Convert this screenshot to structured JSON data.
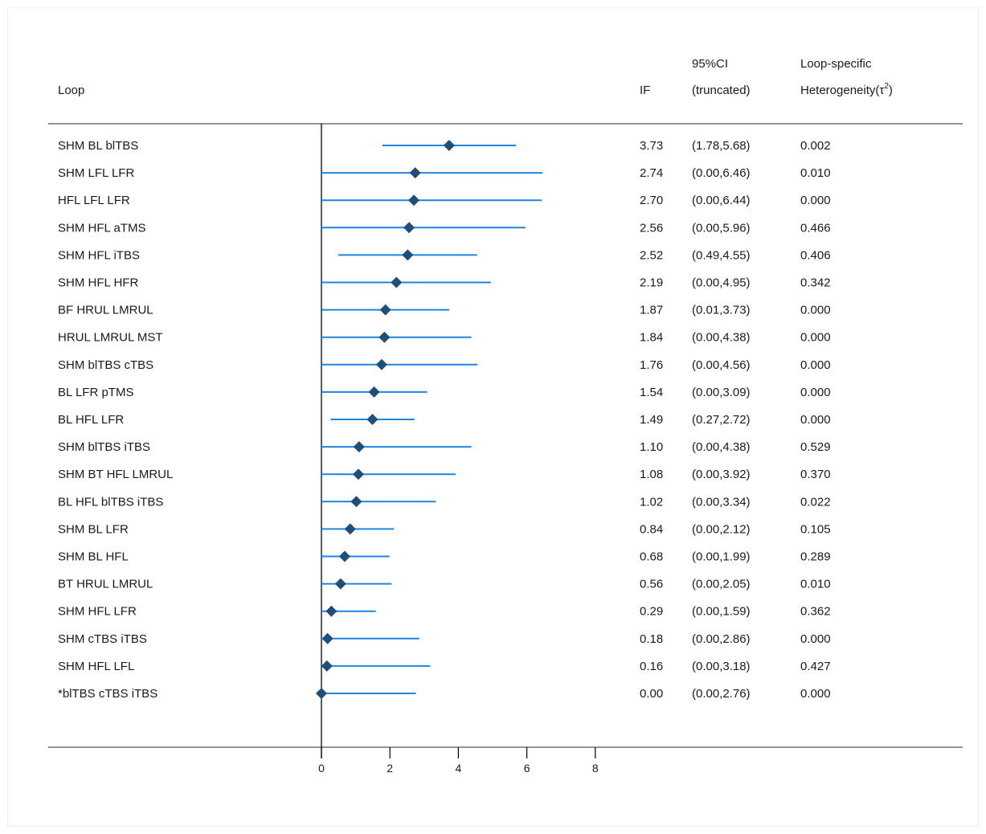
{
  "headers": {
    "loop": "Loop",
    "if": "IF",
    "ci_top": "95%CI",
    "ci_bottom": "(truncated)",
    "het_top": "Loop-specific",
    "het_bottom_prefix": "Heterogeneity(",
    "het_tau": "τ",
    "het_sup": "2",
    "het_bottom_suffix": ")"
  },
  "colors": {
    "ci_line": "#1f86e0",
    "marker": "#1f4e79",
    "axis": "#000000",
    "rule": "#555555"
  },
  "chart_data": {
    "type": "forest",
    "xlabel": "",
    "xlim": [
      0,
      8
    ],
    "xticks": [
      0,
      2,
      4,
      6,
      8
    ],
    "rows": [
      {
        "loop": "SHM BL blTBS",
        "if": 3.73,
        "lo": 1.78,
        "hi": 5.68,
        "if_text": "3.73",
        "ci_text": "(1.78,5.68)",
        "tau2": "0.002"
      },
      {
        "loop": "SHM LFL LFR",
        "if": 2.74,
        "lo": 0.0,
        "hi": 6.46,
        "if_text": "2.74",
        "ci_text": "(0.00,6.46)",
        "tau2": "0.010"
      },
      {
        "loop": "HFL LFL LFR",
        "if": 2.7,
        "lo": 0.0,
        "hi": 6.44,
        "if_text": "2.70",
        "ci_text": "(0.00,6.44)",
        "tau2": "0.000"
      },
      {
        "loop": "SHM HFL aTMS",
        "if": 2.56,
        "lo": 0.0,
        "hi": 5.96,
        "if_text": "2.56",
        "ci_text": "(0.00,5.96)",
        "tau2": "0.466"
      },
      {
        "loop": "SHM HFL iTBS",
        "if": 2.52,
        "lo": 0.49,
        "hi": 4.55,
        "if_text": "2.52",
        "ci_text": "(0.49,4.55)",
        "tau2": "0.406"
      },
      {
        "loop": "SHM HFL HFR",
        "if": 2.19,
        "lo": 0.0,
        "hi": 4.95,
        "if_text": "2.19",
        "ci_text": "(0.00,4.95)",
        "tau2": "0.342"
      },
      {
        "loop": "BF HRUL LMRUL",
        "if": 1.87,
        "lo": 0.01,
        "hi": 3.73,
        "if_text": "1.87",
        "ci_text": "(0.01,3.73)",
        "tau2": "0.000"
      },
      {
        "loop": "HRUL LMRUL MST",
        "if": 1.84,
        "lo": 0.0,
        "hi": 4.38,
        "if_text": "1.84",
        "ci_text": "(0.00,4.38)",
        "tau2": "0.000"
      },
      {
        "loop": "SHM blTBS cTBS",
        "if": 1.76,
        "lo": 0.0,
        "hi": 4.56,
        "if_text": "1.76",
        "ci_text": "(0.00,4.56)",
        "tau2": "0.000"
      },
      {
        "loop": "BL LFR pTMS",
        "if": 1.54,
        "lo": 0.0,
        "hi": 3.09,
        "if_text": "1.54",
        "ci_text": "(0.00,3.09)",
        "tau2": "0.000"
      },
      {
        "loop": "BL HFL LFR",
        "if": 1.49,
        "lo": 0.27,
        "hi": 2.72,
        "if_text": "1.49",
        "ci_text": "(0.27,2.72)",
        "tau2": "0.000"
      },
      {
        "loop": "SHM blTBS iTBS",
        "if": 1.1,
        "lo": 0.0,
        "hi": 4.38,
        "if_text": "1.10",
        "ci_text": "(0.00,4.38)",
        "tau2": "0.529"
      },
      {
        "loop": "SHM BT HFL LMRUL",
        "if": 1.08,
        "lo": 0.0,
        "hi": 3.92,
        "if_text": "1.08",
        "ci_text": "(0.00,3.92)",
        "tau2": "0.370"
      },
      {
        "loop": "BL HFL blTBS iTBS",
        "if": 1.02,
        "lo": 0.0,
        "hi": 3.34,
        "if_text": "1.02",
        "ci_text": "(0.00,3.34)",
        "tau2": "0.022"
      },
      {
        "loop": "SHM BL LFR",
        "if": 0.84,
        "lo": 0.0,
        "hi": 2.12,
        "if_text": "0.84",
        "ci_text": "(0.00,2.12)",
        "tau2": "0.105"
      },
      {
        "loop": "SHM BL HFL",
        "if": 0.68,
        "lo": 0.0,
        "hi": 1.99,
        "if_text": "0.68",
        "ci_text": "(0.00,1.99)",
        "tau2": "0.289"
      },
      {
        "loop": "BT HRUL LMRUL",
        "if": 0.56,
        "lo": 0.0,
        "hi": 2.05,
        "if_text": "0.56",
        "ci_text": "(0.00,2.05)",
        "tau2": "0.010"
      },
      {
        "loop": "SHM HFL LFR",
        "if": 0.29,
        "lo": 0.0,
        "hi": 1.59,
        "if_text": "0.29",
        "ci_text": "(0.00,1.59)",
        "tau2": "0.362"
      },
      {
        "loop": "SHM cTBS iTBS",
        "if": 0.18,
        "lo": 0.0,
        "hi": 2.86,
        "if_text": "0.18",
        "ci_text": "(0.00,2.86)",
        "tau2": "0.000"
      },
      {
        "loop": "SHM HFL LFL",
        "if": 0.16,
        "lo": 0.0,
        "hi": 3.18,
        "if_text": "0.16",
        "ci_text": "(0.00,3.18)",
        "tau2": "0.427"
      },
      {
        "loop": "*blTBS cTBS iTBS",
        "if": 0.0,
        "lo": 0.0,
        "hi": 2.76,
        "if_text": "0.00",
        "ci_text": "(0.00,2.76)",
        "tau2": "0.000"
      }
    ]
  }
}
